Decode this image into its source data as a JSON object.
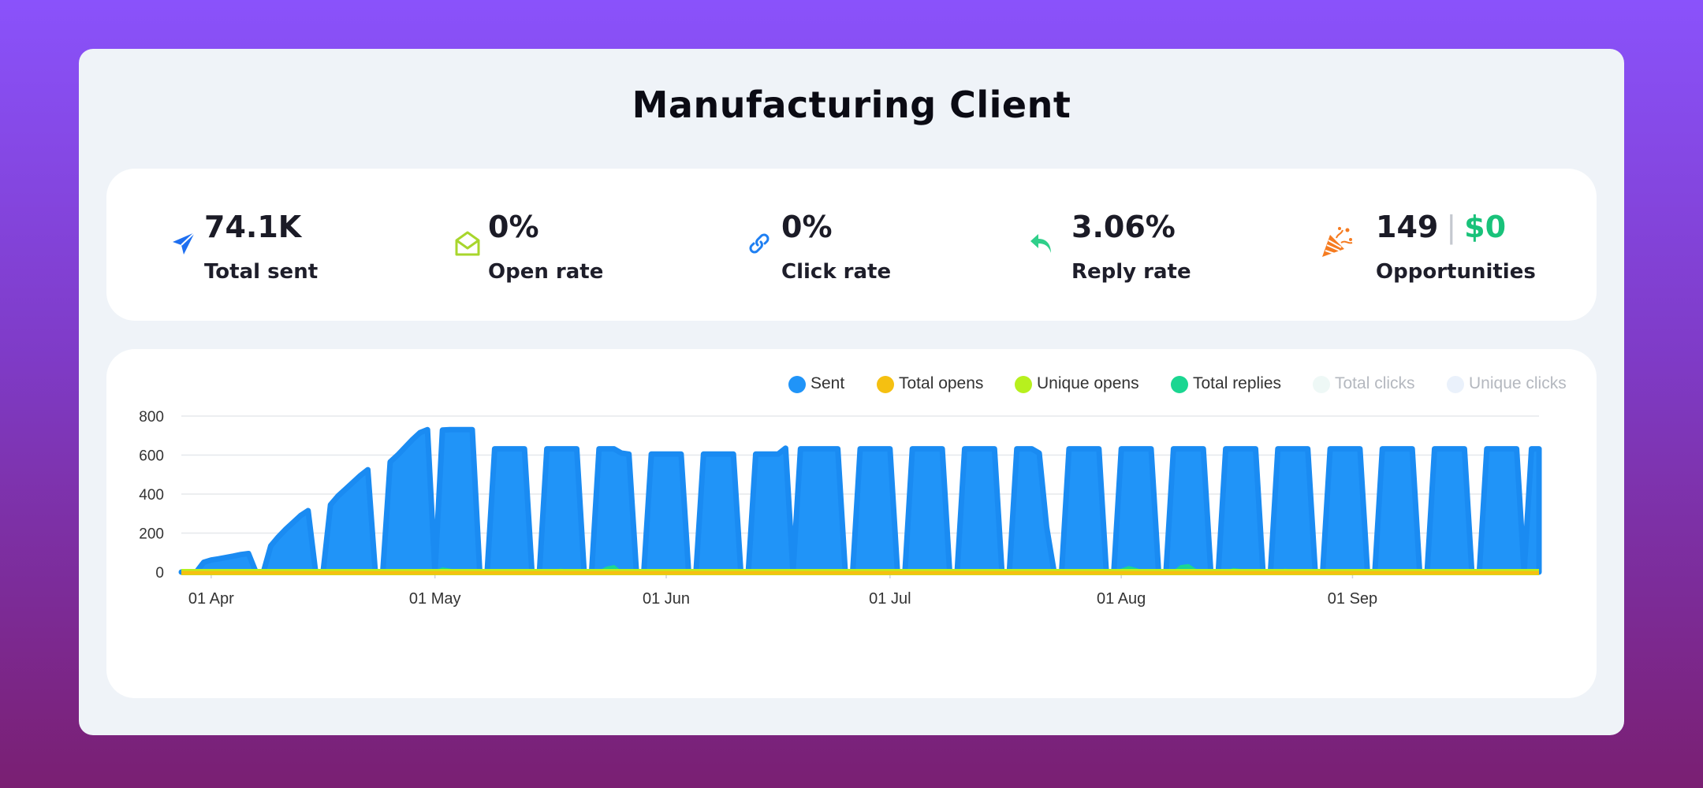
{
  "title": "Manufacturing Client",
  "stats": {
    "total_sent": {
      "value": "74.1K",
      "label": "Total sent"
    },
    "open_rate": {
      "value": "0%",
      "label": "Open rate"
    },
    "click_rate": {
      "value": "0%",
      "label": "Click rate"
    },
    "reply_rate": {
      "value": "3.06%",
      "label": "Reply rate"
    },
    "opportunities": {
      "count": "149",
      "separator": "|",
      "amount": "$0",
      "label": "Opportunities"
    }
  },
  "colors": {
    "sent": "#2094f8",
    "sent_stroke": "#1a8bf2",
    "total_opens": "#f5c011",
    "unique_opens": "#b7f01e",
    "total_replies": "#1bd691",
    "total_clicks": "#eef8f6",
    "unique_clicks": "#eaf1fb",
    "send_icon": "#1e6ff0",
    "open_icon": "#a8d62c",
    "click_icon": "#1e7ff2",
    "reply_icon": "#2fcf8a",
    "opportunity_icon": "#f57b20"
  },
  "legend": [
    {
      "name": "Sent",
      "color": "#2094f8",
      "hidden": false
    },
    {
      "name": "Total opens",
      "color": "#f5c011",
      "hidden": false
    },
    {
      "name": "Unique opens",
      "color": "#b7f01e",
      "hidden": false
    },
    {
      "name": "Total replies",
      "color": "#1bd691",
      "hidden": false
    },
    {
      "name": "Total clicks",
      "color": "#eef8f6",
      "hidden": true
    },
    {
      "name": "Unique clicks",
      "color": "#eaf1fb",
      "hidden": true
    }
  ],
  "chart_data": {
    "type": "area",
    "x_start": "2024-03-28",
    "x_end": "2024-09-26",
    "xticks": [
      {
        "date": "2024-04-01",
        "label": "01 Apr"
      },
      {
        "date": "2024-05-01",
        "label": "01 May"
      },
      {
        "date": "2024-06-01",
        "label": "01 Jun"
      },
      {
        "date": "2024-07-01",
        "label": "01 Jul"
      },
      {
        "date": "2024-08-01",
        "label": "01 Aug"
      },
      {
        "date": "2024-09-01",
        "label": "01 Sep"
      }
    ],
    "ylim": [
      0,
      800
    ],
    "yticks": [
      0,
      200,
      400,
      600,
      800
    ],
    "grid": true,
    "legend_position": "top-right",
    "series": [
      {
        "name": "Sent",
        "points": [
          [
            "2024-03-28",
            0
          ],
          [
            "2024-03-30",
            0
          ],
          [
            "2024-03-31",
            50
          ],
          [
            "2024-04-01",
            62
          ],
          [
            "2024-04-02",
            68
          ],
          [
            "2024-04-03",
            75
          ],
          [
            "2024-04-04",
            82
          ],
          [
            "2024-04-05",
            90
          ],
          [
            "2024-04-06",
            95
          ],
          [
            "2024-04-07",
            0
          ],
          [
            "2024-04-08",
            0
          ],
          [
            "2024-04-09",
            135
          ],
          [
            "2024-04-10",
            180
          ],
          [
            "2024-04-11",
            220
          ],
          [
            "2024-04-12",
            255
          ],
          [
            "2024-04-13",
            290
          ],
          [
            "2024-04-14",
            315
          ],
          [
            "2024-04-15",
            0
          ],
          [
            "2024-04-16",
            0
          ],
          [
            "2024-04-17",
            345
          ],
          [
            "2024-04-18",
            390
          ],
          [
            "2024-04-19",
            425
          ],
          [
            "2024-04-20",
            460
          ],
          [
            "2024-04-21",
            495
          ],
          [
            "2024-04-22",
            525
          ],
          [
            "2024-04-23",
            0
          ],
          [
            "2024-04-24",
            0
          ],
          [
            "2024-04-25",
            565
          ],
          [
            "2024-04-26",
            600
          ],
          [
            "2024-04-27",
            640
          ],
          [
            "2024-04-28",
            680
          ],
          [
            "2024-04-29",
            715
          ],
          [
            "2024-04-30",
            730
          ],
          [
            "2024-05-01",
            0
          ],
          [
            "2024-05-02",
            728
          ],
          [
            "2024-05-03",
            730
          ],
          [
            "2024-05-04",
            730
          ],
          [
            "2024-05-05",
            730
          ],
          [
            "2024-05-06",
            730
          ],
          [
            "2024-05-07",
            0
          ],
          [
            "2024-05-08",
            0
          ],
          [
            "2024-05-09",
            632
          ],
          [
            "2024-05-10",
            632
          ],
          [
            "2024-05-11",
            632
          ],
          [
            "2024-05-12",
            632
          ],
          [
            "2024-05-13",
            632
          ],
          [
            "2024-05-14",
            0
          ],
          [
            "2024-05-15",
            0
          ],
          [
            "2024-05-16",
            632
          ],
          [
            "2024-05-17",
            632
          ],
          [
            "2024-05-18",
            632
          ],
          [
            "2024-05-19",
            632
          ],
          [
            "2024-05-20",
            632
          ],
          [
            "2024-05-21",
            0
          ],
          [
            "2024-05-22",
            0
          ],
          [
            "2024-05-23",
            632
          ],
          [
            "2024-05-24",
            632
          ],
          [
            "2024-05-25",
            632
          ],
          [
            "2024-05-26",
            610
          ],
          [
            "2024-05-27",
            605
          ],
          [
            "2024-05-28",
            0
          ],
          [
            "2024-05-29",
            0
          ],
          [
            "2024-05-30",
            605
          ],
          [
            "2024-05-31",
            605
          ],
          [
            "2024-06-01",
            605
          ],
          [
            "2024-06-02",
            605
          ],
          [
            "2024-06-03",
            605
          ],
          [
            "2024-06-04",
            0
          ],
          [
            "2024-06-05",
            0
          ],
          [
            "2024-06-06",
            605
          ],
          [
            "2024-06-07",
            605
          ],
          [
            "2024-06-08",
            605
          ],
          [
            "2024-06-09",
            605
          ],
          [
            "2024-06-10",
            605
          ],
          [
            "2024-06-11",
            0
          ],
          [
            "2024-06-12",
            0
          ],
          [
            "2024-06-13",
            605
          ],
          [
            "2024-06-14",
            605
          ],
          [
            "2024-06-15",
            605
          ],
          [
            "2024-06-16",
            605
          ],
          [
            "2024-06-17",
            635
          ],
          [
            "2024-06-18",
            0
          ],
          [
            "2024-06-19",
            632
          ],
          [
            "2024-06-20",
            632
          ],
          [
            "2024-06-21",
            632
          ],
          [
            "2024-06-22",
            632
          ],
          [
            "2024-06-23",
            632
          ],
          [
            "2024-06-24",
            632
          ],
          [
            "2024-06-25",
            0
          ],
          [
            "2024-06-26",
            0
          ],
          [
            "2024-06-27",
            632
          ],
          [
            "2024-06-28",
            632
          ],
          [
            "2024-06-29",
            632
          ],
          [
            "2024-06-30",
            632
          ],
          [
            "2024-07-01",
            632
          ],
          [
            "2024-07-02",
            0
          ],
          [
            "2024-07-03",
            0
          ],
          [
            "2024-07-04",
            632
          ],
          [
            "2024-07-05",
            632
          ],
          [
            "2024-07-06",
            632
          ],
          [
            "2024-07-07",
            632
          ],
          [
            "2024-07-08",
            632
          ],
          [
            "2024-07-09",
            0
          ],
          [
            "2024-07-10",
            0
          ],
          [
            "2024-07-11",
            632
          ],
          [
            "2024-07-12",
            632
          ],
          [
            "2024-07-13",
            632
          ],
          [
            "2024-07-14",
            632
          ],
          [
            "2024-07-15",
            632
          ],
          [
            "2024-07-16",
            0
          ],
          [
            "2024-07-17",
            0
          ],
          [
            "2024-07-18",
            632
          ],
          [
            "2024-07-19",
            632
          ],
          [
            "2024-07-20",
            632
          ],
          [
            "2024-07-21",
            610
          ],
          [
            "2024-07-22",
            230
          ],
          [
            "2024-07-23",
            0
          ],
          [
            "2024-07-24",
            0
          ],
          [
            "2024-07-25",
            632
          ],
          [
            "2024-07-26",
            632
          ],
          [
            "2024-07-27",
            632
          ],
          [
            "2024-07-28",
            632
          ],
          [
            "2024-07-29",
            632
          ],
          [
            "2024-07-30",
            0
          ],
          [
            "2024-07-31",
            0
          ],
          [
            "2024-08-01",
            632
          ],
          [
            "2024-08-02",
            632
          ],
          [
            "2024-08-03",
            632
          ],
          [
            "2024-08-04",
            632
          ],
          [
            "2024-08-05",
            632
          ],
          [
            "2024-08-06",
            0
          ],
          [
            "2024-08-07",
            0
          ],
          [
            "2024-08-08",
            632
          ],
          [
            "2024-08-09",
            632
          ],
          [
            "2024-08-10",
            632
          ],
          [
            "2024-08-11",
            632
          ],
          [
            "2024-08-12",
            632
          ],
          [
            "2024-08-13",
            0
          ],
          [
            "2024-08-14",
            0
          ],
          [
            "2024-08-15",
            632
          ],
          [
            "2024-08-16",
            632
          ],
          [
            "2024-08-17",
            632
          ],
          [
            "2024-08-18",
            632
          ],
          [
            "2024-08-19",
            632
          ],
          [
            "2024-08-20",
            0
          ],
          [
            "2024-08-21",
            0
          ],
          [
            "2024-08-22",
            632
          ],
          [
            "2024-08-23",
            632
          ],
          [
            "2024-08-24",
            632
          ],
          [
            "2024-08-25",
            632
          ],
          [
            "2024-08-26",
            632
          ],
          [
            "2024-08-27",
            0
          ],
          [
            "2024-08-28",
            0
          ],
          [
            "2024-08-29",
            632
          ],
          [
            "2024-08-30",
            632
          ],
          [
            "2024-08-31",
            632
          ],
          [
            "2024-09-01",
            632
          ],
          [
            "2024-09-02",
            632
          ],
          [
            "2024-09-03",
            0
          ],
          [
            "2024-09-04",
            0
          ],
          [
            "2024-09-05",
            632
          ],
          [
            "2024-09-06",
            632
          ],
          [
            "2024-09-07",
            632
          ],
          [
            "2024-09-08",
            632
          ],
          [
            "2024-09-09",
            632
          ],
          [
            "2024-09-10",
            0
          ],
          [
            "2024-09-11",
            0
          ],
          [
            "2024-09-12",
            632
          ],
          [
            "2024-09-13",
            632
          ],
          [
            "2024-09-14",
            632
          ],
          [
            "2024-09-15",
            632
          ],
          [
            "2024-09-16",
            632
          ],
          [
            "2024-09-17",
            0
          ],
          [
            "2024-09-18",
            0
          ],
          [
            "2024-09-19",
            632
          ],
          [
            "2024-09-20",
            632
          ],
          [
            "2024-09-21",
            632
          ],
          [
            "2024-09-22",
            632
          ],
          [
            "2024-09-23",
            632
          ],
          [
            "2024-09-24",
            0
          ],
          [
            "2024-09-25",
            632
          ],
          [
            "2024-09-26",
            632
          ],
          [
            "2024-09-26",
            0
          ]
        ]
      },
      {
        "name": "Total replies",
        "points": [
          [
            "2024-03-28",
            0
          ],
          [
            "2024-04-24",
            0
          ],
          [
            "2024-04-25",
            10
          ],
          [
            "2024-04-26",
            0
          ],
          [
            "2024-05-01",
            0
          ],
          [
            "2024-05-02",
            18
          ],
          [
            "2024-05-03",
            12
          ],
          [
            "2024-05-04",
            0
          ],
          [
            "2024-05-09",
            0
          ],
          [
            "2024-05-10",
            10
          ],
          [
            "2024-05-11",
            0
          ],
          [
            "2024-05-16",
            0
          ],
          [
            "2024-05-17",
            8
          ],
          [
            "2024-05-18",
            12
          ],
          [
            "2024-05-19",
            0
          ],
          [
            "2024-05-23",
            0
          ],
          [
            "2024-05-24",
            22
          ],
          [
            "2024-05-25",
            30
          ],
          [
            "2024-05-26",
            0
          ],
          [
            "2024-05-30",
            0
          ],
          [
            "2024-05-31",
            8
          ],
          [
            "2024-06-01",
            0
          ],
          [
            "2024-06-06",
            0
          ],
          [
            "2024-06-07",
            6
          ],
          [
            "2024-06-08",
            0
          ],
          [
            "2024-07-11",
            0
          ],
          [
            "2024-07-12",
            6
          ],
          [
            "2024-07-13",
            0
          ],
          [
            "2024-07-25",
            0
          ],
          [
            "2024-07-26",
            10
          ],
          [
            "2024-07-27",
            0
          ],
          [
            "2024-07-31",
            0
          ],
          [
            "2024-08-01",
            12
          ],
          [
            "2024-08-02",
            25
          ],
          [
            "2024-08-03",
            15
          ],
          [
            "2024-08-04",
            0
          ],
          [
            "2024-08-08",
            0
          ],
          [
            "2024-08-09",
            30
          ],
          [
            "2024-08-10",
            35
          ],
          [
            "2024-08-11",
            10
          ],
          [
            "2024-08-12",
            0
          ],
          [
            "2024-08-15",
            0
          ],
          [
            "2024-08-16",
            15
          ],
          [
            "2024-08-17",
            10
          ],
          [
            "2024-08-18",
            0
          ],
          [
            "2024-08-22",
            0
          ],
          [
            "2024-08-23",
            12
          ],
          [
            "2024-08-24",
            0
          ],
          [
            "2024-09-05",
            0
          ],
          [
            "2024-09-06",
            8
          ],
          [
            "2024-09-07",
            0
          ],
          [
            "2024-09-12",
            0
          ],
          [
            "2024-09-13",
            6
          ],
          [
            "2024-09-14",
            0
          ],
          [
            "2024-09-26",
            0
          ]
        ]
      },
      {
        "name": "Total opens",
        "values_constant": 0
      },
      {
        "name": "Unique opens",
        "values_constant": 0
      }
    ]
  }
}
